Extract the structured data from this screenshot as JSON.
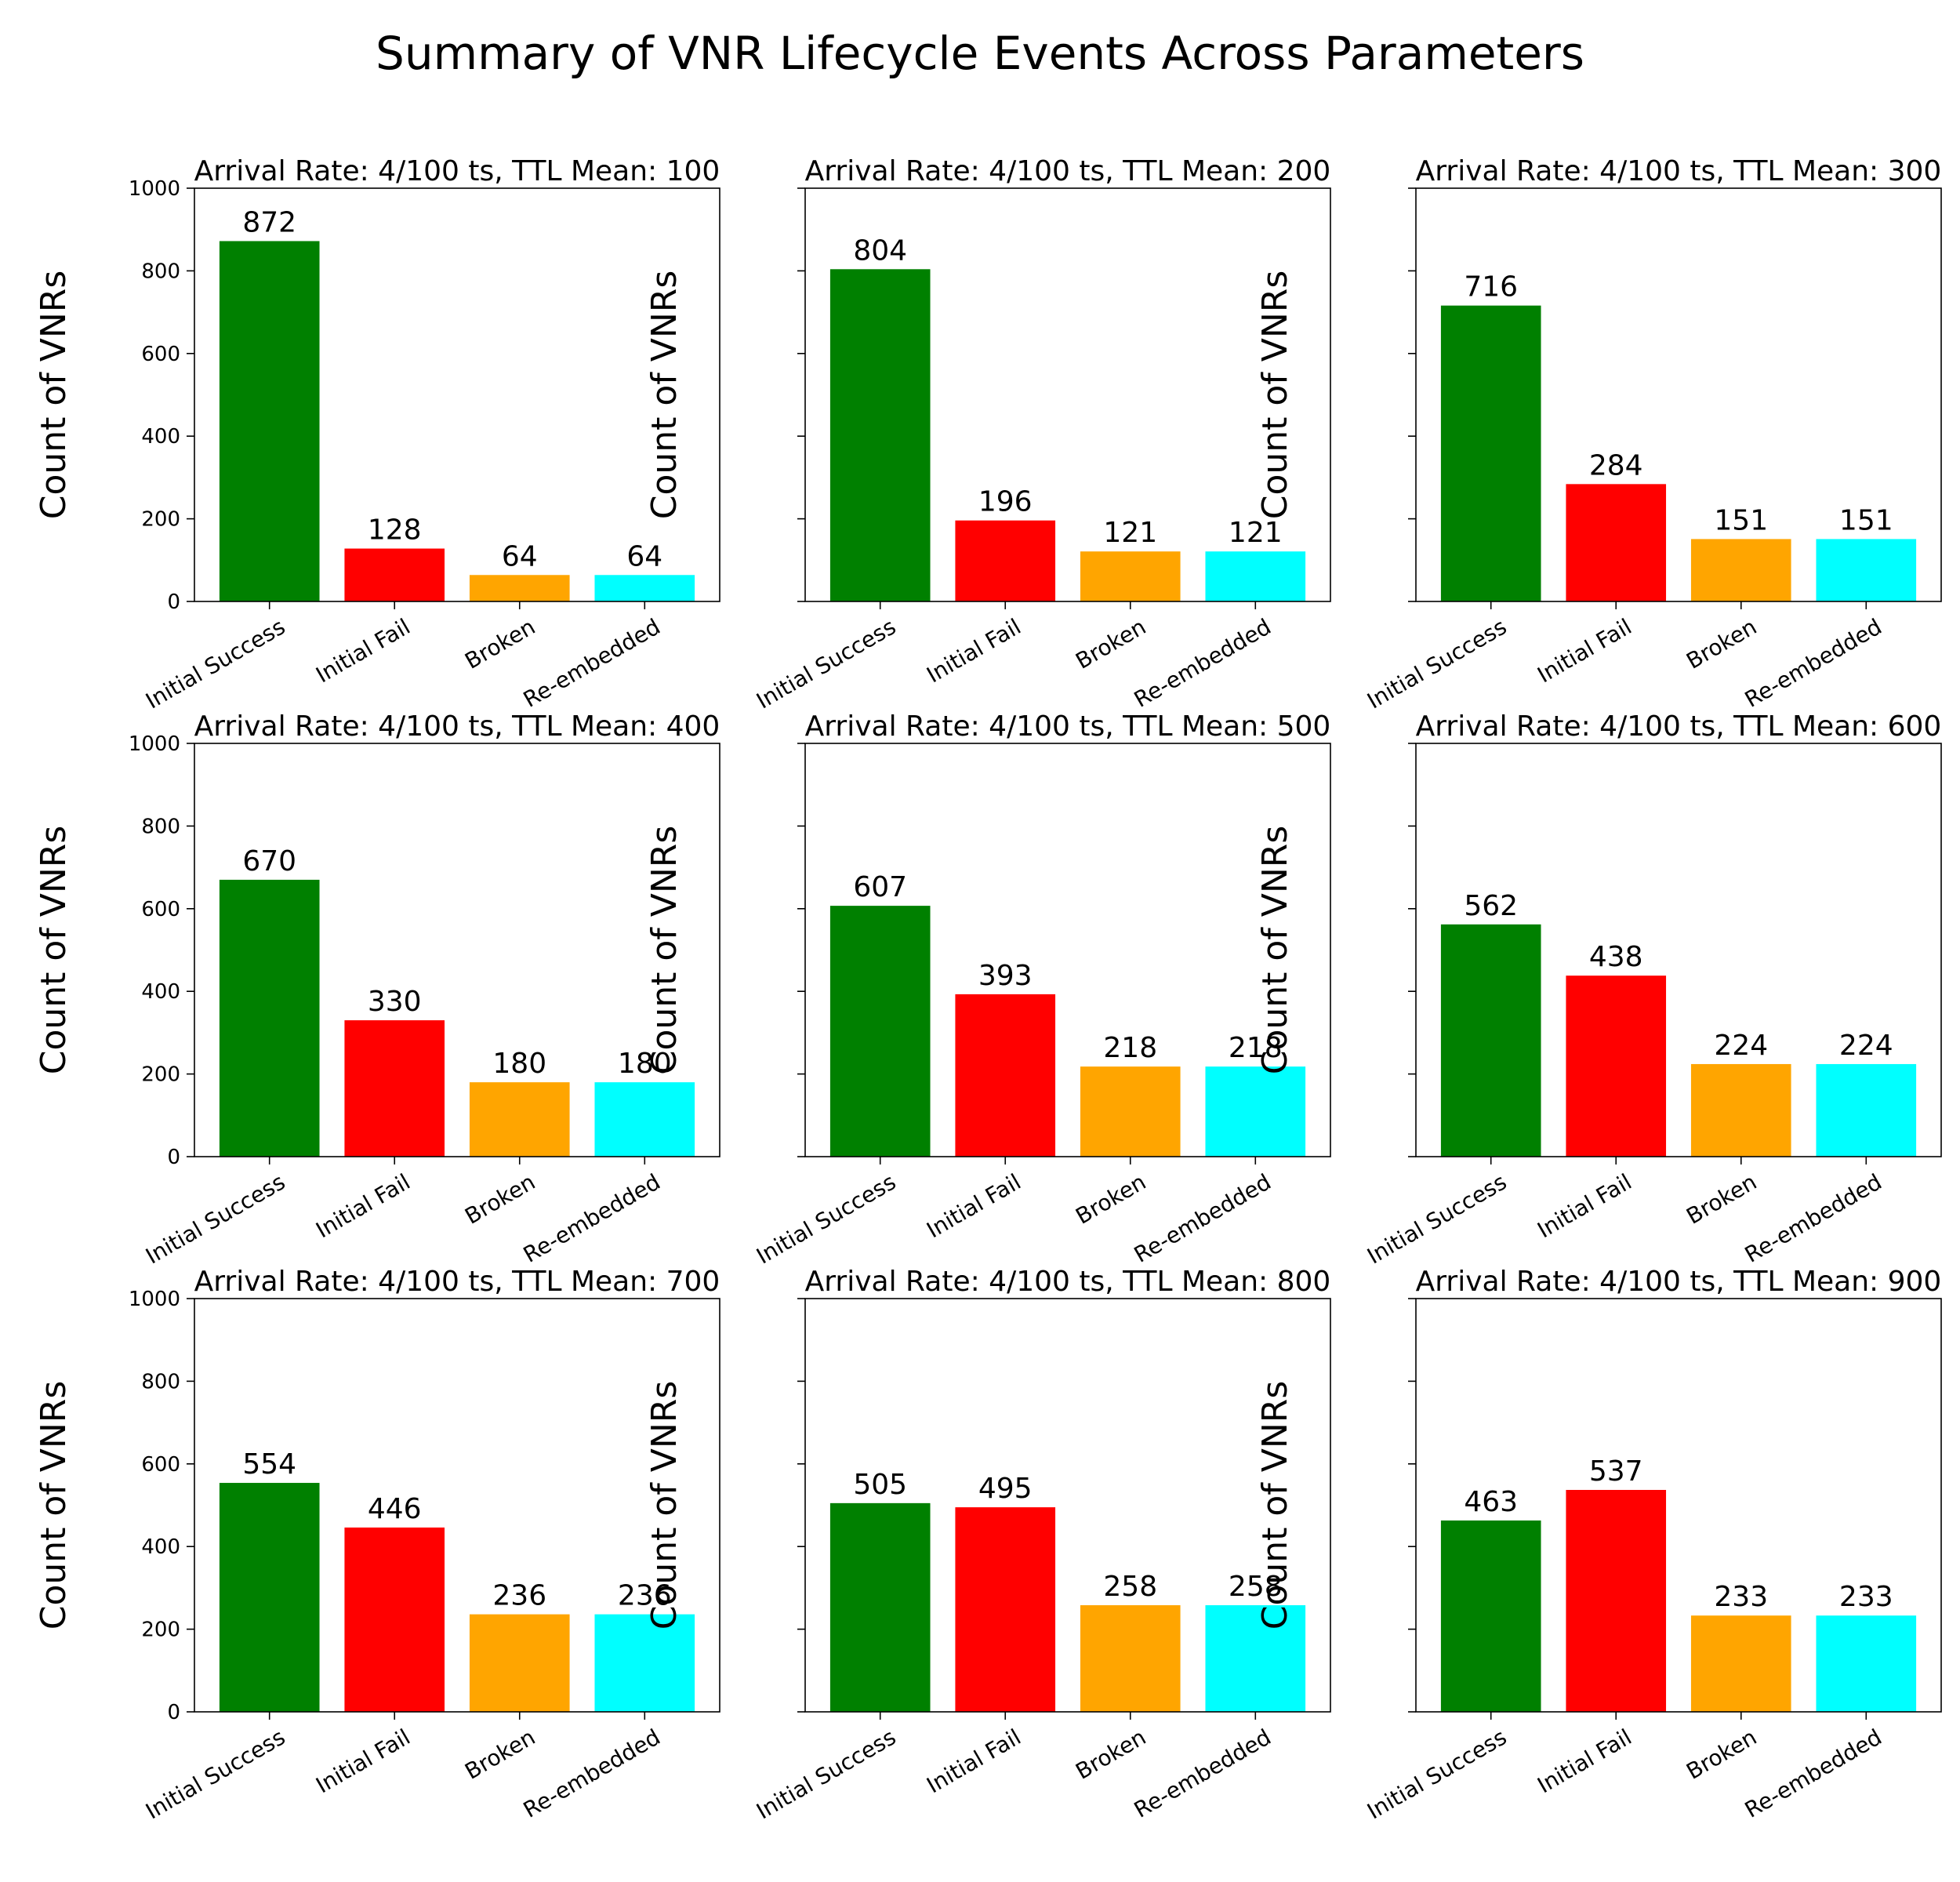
{
  "figure_title": "Summary of VNR Lifecycle Events Across Parameters",
  "colors": {
    "Initial Success": "#008000",
    "Initial Fail": "#ff0000",
    "Broken": "#ffa500",
    "Re-embedded": "#00ffff"
  },
  "chart_data": [
    {
      "type": "bar",
      "title": "Arrival Rate: 4/100 ts, TTL Mean: 100",
      "categories": [
        "Initial Success",
        "Initial Fail",
        "Broken",
        "Re-embedded"
      ],
      "values": [
        872,
        128,
        64,
        64
      ],
      "xlabel": "",
      "ylabel": "Count of VNRs",
      "ylim": [
        0,
        1000
      ],
      "yticks": [
        "0",
        "200",
        "400",
        "600",
        "800",
        "1000"
      ],
      "grid": false
    },
    {
      "type": "bar",
      "title": "Arrival Rate: 4/100 ts, TTL Mean: 200",
      "categories": [
        "Initial Success",
        "Initial Fail",
        "Broken",
        "Re-embedded"
      ],
      "values": [
        804,
        196,
        121,
        121
      ],
      "xlabel": "",
      "ylabel": "Count of VNRs",
      "ylim": [
        0,
        1000
      ],
      "yticks": [],
      "grid": false
    },
    {
      "type": "bar",
      "title": "Arrival Rate: 4/100 ts, TTL Mean: 300",
      "categories": [
        "Initial Success",
        "Initial Fail",
        "Broken",
        "Re-embedded"
      ],
      "values": [
        716,
        284,
        151,
        151
      ],
      "xlabel": "",
      "ylabel": "Count of VNRs",
      "ylim": [
        0,
        1000
      ],
      "yticks": [],
      "grid": false
    },
    {
      "type": "bar",
      "title": "Arrival Rate: 4/100 ts, TTL Mean: 400",
      "categories": [
        "Initial Success",
        "Initial Fail",
        "Broken",
        "Re-embedded"
      ],
      "values": [
        670,
        330,
        180,
        180
      ],
      "xlabel": "",
      "ylabel": "Count of VNRs",
      "ylim": [
        0,
        1000
      ],
      "yticks": [
        "0",
        "200",
        "400",
        "600",
        "800",
        "1000"
      ],
      "grid": false
    },
    {
      "type": "bar",
      "title": "Arrival Rate: 4/100 ts, TTL Mean: 500",
      "categories": [
        "Initial Success",
        "Initial Fail",
        "Broken",
        "Re-embedded"
      ],
      "values": [
        607,
        393,
        218,
        218
      ],
      "xlabel": "",
      "ylabel": "Count of VNRs",
      "ylim": [
        0,
        1000
      ],
      "yticks": [],
      "grid": false
    },
    {
      "type": "bar",
      "title": "Arrival Rate: 4/100 ts, TTL Mean: 600",
      "categories": [
        "Initial Success",
        "Initial Fail",
        "Broken",
        "Re-embedded"
      ],
      "values": [
        562,
        438,
        224,
        224
      ],
      "xlabel": "",
      "ylabel": "Count of VNRs",
      "ylim": [
        0,
        1000
      ],
      "yticks": [],
      "grid": false
    },
    {
      "type": "bar",
      "title": "Arrival Rate: 4/100 ts, TTL Mean: 700",
      "categories": [
        "Initial Success",
        "Initial Fail",
        "Broken",
        "Re-embedded"
      ],
      "values": [
        554,
        446,
        236,
        236
      ],
      "xlabel": "",
      "ylabel": "Count of VNRs",
      "ylim": [
        0,
        1000
      ],
      "yticks": [
        "0",
        "200",
        "400",
        "600",
        "800",
        "1000"
      ],
      "grid": false
    },
    {
      "type": "bar",
      "title": "Arrival Rate: 4/100 ts, TTL Mean: 800",
      "categories": [
        "Initial Success",
        "Initial Fail",
        "Broken",
        "Re-embedded"
      ],
      "values": [
        505,
        495,
        258,
        258
      ],
      "xlabel": "",
      "ylabel": "Count of VNRs",
      "ylim": [
        0,
        1000
      ],
      "yticks": [],
      "grid": false
    },
    {
      "type": "bar",
      "title": "Arrival Rate: 4/100 ts, TTL Mean: 900",
      "categories": [
        "Initial Success",
        "Initial Fail",
        "Broken",
        "Re-embedded"
      ],
      "values": [
        463,
        537,
        233,
        233
      ],
      "xlabel": "",
      "ylabel": "Count of VNRs",
      "ylim": [
        0,
        1000
      ],
      "yticks": [],
      "grid": false
    }
  ]
}
